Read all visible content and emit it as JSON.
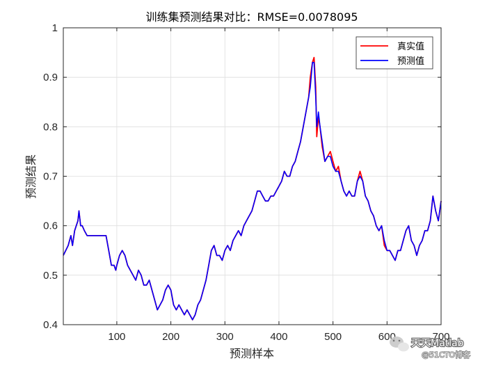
{
  "chart_data": {
    "type": "line",
    "title": "训练集预测结果对比：RMSE=0.0078095",
    "xlabel": "预测样本",
    "ylabel": "预测结果",
    "xlim": [
      1,
      700
    ],
    "ylim": [
      0.4,
      1.0
    ],
    "x_ticks": [
      100,
      200,
      300,
      400,
      500,
      600,
      700
    ],
    "y_ticks": [
      0.4,
      0.5,
      0.6,
      0.7,
      0.8,
      0.9,
      1.0
    ],
    "x_tick_labels": [
      "100",
      "200",
      "300",
      "400",
      "500",
      "600",
      "700"
    ],
    "y_tick_labels": [
      "0.4",
      "0.5",
      "0.6",
      "0.7",
      "0.8",
      "0.9",
      "1"
    ],
    "grid": true,
    "legend_position": "top-right",
    "x": [
      1,
      10,
      15,
      18,
      22,
      25,
      28,
      30,
      33,
      36,
      40,
      45,
      50,
      60,
      65,
      70,
      75,
      80,
      85,
      90,
      95,
      98,
      100,
      105,
      110,
      115,
      120,
      125,
      130,
      135,
      140,
      145,
      150,
      155,
      160,
      165,
      170,
      175,
      180,
      185,
      190,
      195,
      200,
      205,
      210,
      215,
      220,
      225,
      230,
      235,
      240,
      245,
      250,
      255,
      260,
      265,
      270,
      275,
      280,
      285,
      290,
      295,
      300,
      305,
      310,
      315,
      320,
      325,
      330,
      335,
      340,
      345,
      350,
      355,
      360,
      365,
      370,
      375,
      380,
      385,
      390,
      395,
      400,
      405,
      410,
      415,
      420,
      425,
      430,
      435,
      440,
      445,
      450,
      455,
      458,
      462,
      465,
      468,
      470,
      473,
      476,
      480,
      485,
      490,
      495,
      500,
      505,
      510,
      515,
      520,
      525,
      530,
      535,
      540,
      545,
      550,
      555,
      560,
      565,
      570,
      575,
      580,
      585,
      590,
      595,
      600,
      605,
      610,
      615,
      620,
      625,
      630,
      635,
      640,
      645,
      650,
      655,
      660,
      665,
      670,
      675,
      680,
      685,
      690,
      695,
      700
    ],
    "series": [
      {
        "name": "真实值",
        "color": "#ff0000",
        "values": [
          0.54,
          0.56,
          0.58,
          0.56,
          0.59,
          0.6,
          0.61,
          0.63,
          0.6,
          0.6,
          0.59,
          0.58,
          0.58,
          0.58,
          0.58,
          0.58,
          0.58,
          0.58,
          0.55,
          0.52,
          0.52,
          0.51,
          0.52,
          0.54,
          0.55,
          0.54,
          0.52,
          0.51,
          0.5,
          0.49,
          0.51,
          0.5,
          0.48,
          0.48,
          0.49,
          0.47,
          0.45,
          0.43,
          0.44,
          0.45,
          0.47,
          0.48,
          0.47,
          0.44,
          0.43,
          0.44,
          0.43,
          0.42,
          0.43,
          0.42,
          0.41,
          0.42,
          0.44,
          0.45,
          0.47,
          0.49,
          0.52,
          0.55,
          0.56,
          0.54,
          0.54,
          0.53,
          0.55,
          0.56,
          0.55,
          0.57,
          0.58,
          0.59,
          0.58,
          0.6,
          0.61,
          0.62,
          0.63,
          0.65,
          0.67,
          0.67,
          0.66,
          0.65,
          0.65,
          0.66,
          0.66,
          0.67,
          0.68,
          0.69,
          0.71,
          0.7,
          0.7,
          0.72,
          0.73,
          0.75,
          0.77,
          0.8,
          0.83,
          0.86,
          0.9,
          0.93,
          0.94,
          0.88,
          0.78,
          0.82,
          0.8,
          0.76,
          0.73,
          0.74,
          0.75,
          0.73,
          0.71,
          0.72,
          0.69,
          0.67,
          0.66,
          0.67,
          0.66,
          0.66,
          0.69,
          0.71,
          0.69,
          0.66,
          0.65,
          0.63,
          0.62,
          0.6,
          0.59,
          0.6,
          0.56,
          0.55,
          0.55,
          0.54,
          0.53,
          0.55,
          0.55,
          0.57,
          0.59,
          0.6,
          0.57,
          0.56,
          0.54,
          0.56,
          0.57,
          0.59,
          0.59,
          0.61,
          0.66,
          0.63,
          0.61,
          0.65
        ]
      },
      {
        "name": "预测值",
        "color": "#0000ff",
        "values": [
          0.54,
          0.56,
          0.58,
          0.56,
          0.59,
          0.6,
          0.61,
          0.63,
          0.6,
          0.6,
          0.59,
          0.58,
          0.58,
          0.58,
          0.58,
          0.58,
          0.58,
          0.58,
          0.55,
          0.52,
          0.52,
          0.51,
          0.52,
          0.54,
          0.55,
          0.54,
          0.52,
          0.51,
          0.5,
          0.49,
          0.51,
          0.5,
          0.48,
          0.48,
          0.49,
          0.47,
          0.45,
          0.43,
          0.44,
          0.45,
          0.47,
          0.48,
          0.47,
          0.44,
          0.43,
          0.44,
          0.43,
          0.42,
          0.43,
          0.42,
          0.41,
          0.42,
          0.44,
          0.45,
          0.47,
          0.49,
          0.52,
          0.55,
          0.56,
          0.54,
          0.54,
          0.53,
          0.55,
          0.56,
          0.55,
          0.57,
          0.58,
          0.59,
          0.58,
          0.6,
          0.61,
          0.62,
          0.63,
          0.65,
          0.67,
          0.67,
          0.66,
          0.65,
          0.65,
          0.66,
          0.66,
          0.67,
          0.68,
          0.69,
          0.71,
          0.7,
          0.7,
          0.72,
          0.73,
          0.75,
          0.77,
          0.8,
          0.83,
          0.86,
          0.88,
          0.93,
          0.93,
          0.86,
          0.8,
          0.83,
          0.8,
          0.77,
          0.73,
          0.74,
          0.74,
          0.72,
          0.71,
          0.71,
          0.69,
          0.67,
          0.66,
          0.67,
          0.66,
          0.66,
          0.69,
          0.7,
          0.69,
          0.66,
          0.65,
          0.63,
          0.62,
          0.6,
          0.59,
          0.6,
          0.57,
          0.55,
          0.55,
          0.54,
          0.53,
          0.55,
          0.55,
          0.57,
          0.59,
          0.6,
          0.57,
          0.56,
          0.54,
          0.56,
          0.57,
          0.59,
          0.59,
          0.61,
          0.66,
          0.63,
          0.61,
          0.65
        ]
      }
    ]
  },
  "legend": {
    "items": [
      {
        "label": "真实值",
        "color": "#ff0000"
      },
      {
        "label": "预测值",
        "color": "#0000ff"
      }
    ]
  },
  "watermark": {
    "main": "天天Matlab",
    "sub": "@51CTO博客",
    "icon": "wechat-icon"
  }
}
